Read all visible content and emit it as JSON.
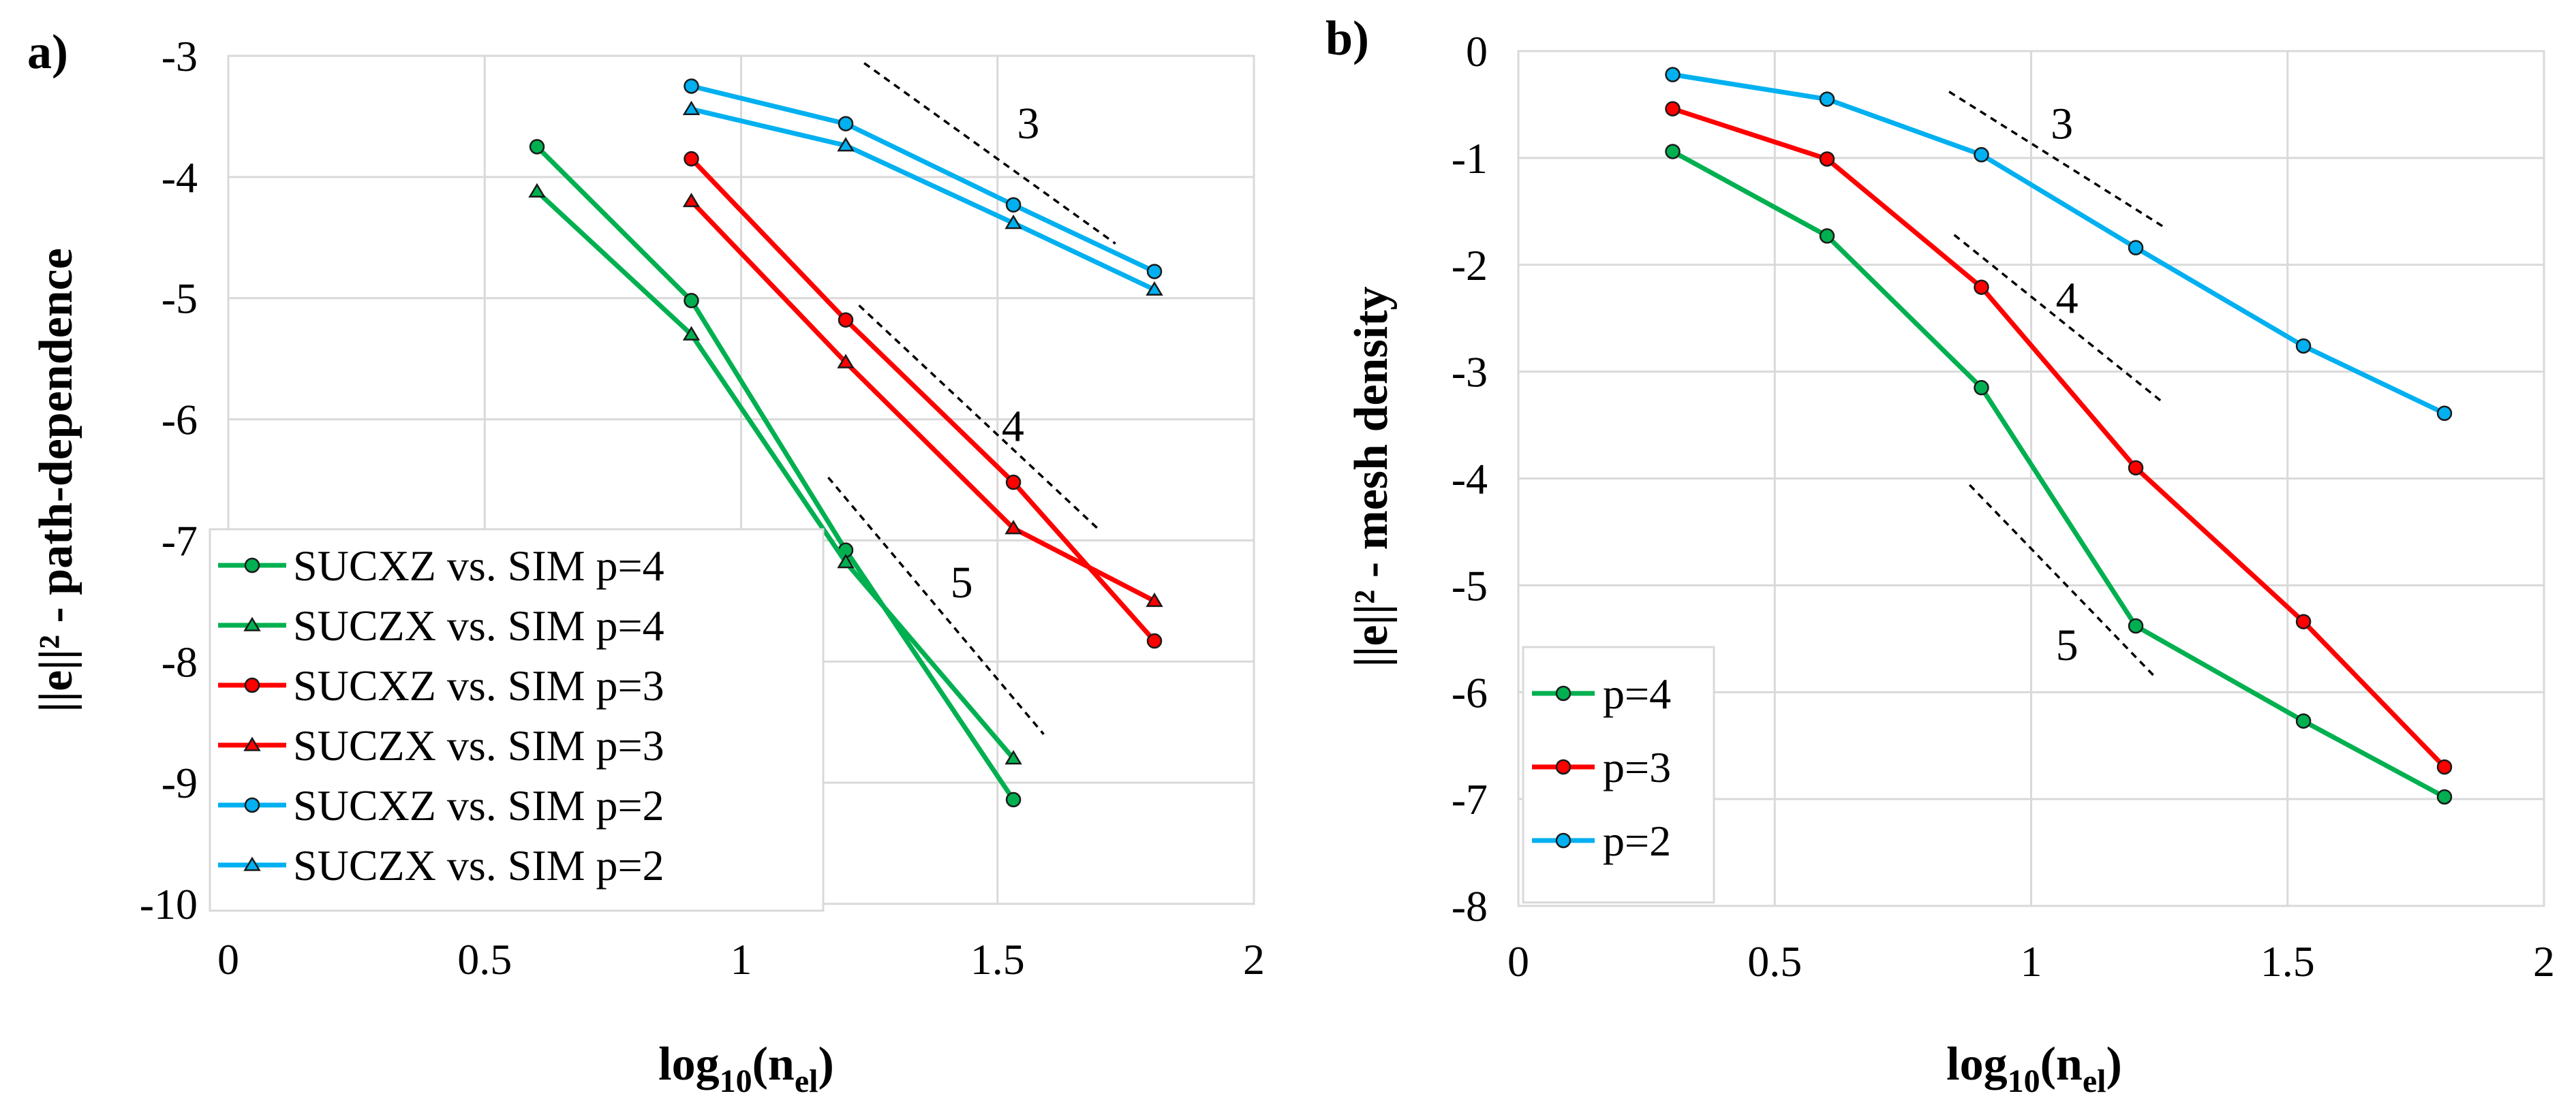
{
  "chart_data": [
    {
      "type": "line",
      "panel_label": "a)",
      "xlabel_main": "log",
      "xlabel_sub": "10",
      "xlabel_paren": "(n",
      "xlabel_sub2": "el",
      "xlabel_close": ")",
      "ylabel": "||e||² - path-dependence",
      "xlim": [
        0,
        2
      ],
      "ylim": [
        -10,
        -3
      ],
      "xticks": [
        "0",
        "0.5",
        "1",
        "1.5",
        "2"
      ],
      "yticks": [
        "-3",
        "-4",
        "-5",
        "-6",
        "-7",
        "-8",
        "-9",
        "-10"
      ],
      "grid": true,
      "legend_position": "bottom-left",
      "series": [
        {
          "name": "SUCXZ vs. SIM p=4",
          "color": "#00B050",
          "marker": "circle",
          "x": [
            0.602,
            0.903,
            1.204,
            1.531
          ],
          "y": [
            -3.75,
            -5.02,
            -7.08,
            -9.14
          ]
        },
        {
          "name": "SUCZX vs. SIM p=4",
          "color": "#00B050",
          "marker": "triangle",
          "x": [
            0.602,
            0.903,
            1.204,
            1.531
          ],
          "y": [
            -4.12,
            -5.3,
            -7.18,
            -8.8
          ]
        },
        {
          "name": "SUCXZ vs. SIM p=3",
          "color": "#FF0000",
          "marker": "circle",
          "x": [
            0.903,
            1.204,
            1.531,
            1.806
          ],
          "y": [
            -3.85,
            -5.18,
            -6.52,
            -7.83
          ]
        },
        {
          "name": "SUCZX vs. SIM p=3",
          "color": "#FF0000",
          "marker": "triangle",
          "x": [
            0.903,
            1.204,
            1.531,
            1.806
          ],
          "y": [
            -4.2,
            -5.53,
            -6.9,
            -7.5
          ]
        },
        {
          "name": "SUCXZ vs. SIM p=2",
          "color": "#00B0F0",
          "marker": "circle",
          "x": [
            0.903,
            1.204,
            1.531,
            1.806
          ],
          "y": [
            -3.25,
            -3.56,
            -4.23,
            -4.78
          ]
        },
        {
          "name": "SUCZX vs. SIM p=2",
          "color": "#00B0F0",
          "marker": "triangle",
          "x": [
            0.903,
            1.204,
            1.531,
            1.806
          ],
          "y": [
            -3.44,
            -3.74,
            -4.38,
            -4.93
          ]
        }
      ],
      "slope_triangles": [
        {
          "label": "3",
          "x": [
            1.24,
            1.73
          ],
          "y": [
            -3.06,
            -4.55
          ],
          "label_x": 1.56,
          "label_y": -3.68
        },
        {
          "label": "4",
          "x": [
            1.23,
            1.7
          ],
          "y": [
            -5.06,
            -6.92
          ],
          "label_x": 1.53,
          "label_y": -6.18
        },
        {
          "label": "5",
          "x": [
            1.17,
            1.59
          ],
          "y": [
            -6.48,
            -8.6
          ],
          "label_x": 1.43,
          "label_y": -7.47
        }
      ]
    },
    {
      "type": "line",
      "panel_label": "b)",
      "xlabel_main": "log",
      "xlabel_sub": "10",
      "xlabel_paren": "(n",
      "xlabel_sub2": "el",
      "xlabel_close": ")",
      "ylabel": "||e||² - mesh density",
      "xlim": [
        0,
        2
      ],
      "ylim": [
        -8,
        0
      ],
      "xticks": [
        "0",
        "0.5",
        "1",
        "1.5",
        "2"
      ],
      "yticks": [
        "0",
        "-1",
        "-2",
        "-3",
        "-4",
        "-5",
        "-6",
        "-7",
        "-8"
      ],
      "grid": true,
      "legend_position": "bottom-left",
      "series": [
        {
          "name": "p=4",
          "color": "#00B050",
          "marker": "circle",
          "x": [
            0.301,
            0.602,
            0.903,
            1.204,
            1.531,
            1.806
          ],
          "y": [
            -0.94,
            -1.73,
            -3.15,
            -5.38,
            -6.27,
            -6.98
          ]
        },
        {
          "name": "p=3",
          "color": "#FF0000",
          "marker": "circle",
          "x": [
            0.301,
            0.602,
            0.903,
            1.204,
            1.531,
            1.806
          ],
          "y": [
            -0.54,
            -1.01,
            -2.21,
            -3.9,
            -5.34,
            -6.7
          ]
        },
        {
          "name": "p=2",
          "color": "#00B0F0",
          "marker": "circle",
          "x": [
            0.301,
            0.602,
            0.903,
            1.204,
            1.531,
            1.806
          ],
          "y": [
            -0.22,
            -0.45,
            -0.97,
            -1.84,
            -2.76,
            -3.39
          ]
        }
      ],
      "slope_triangles": [
        {
          "label": "3",
          "x": [
            0.84,
            1.26
          ],
          "y": [
            -0.38,
            -1.65
          ],
          "label_x": 1.06,
          "label_y": -0.82
        },
        {
          "label": "4",
          "x": [
            0.85,
            1.26
          ],
          "y": [
            -1.72,
            -3.3
          ],
          "label_x": 1.07,
          "label_y": -2.45
        },
        {
          "label": "5",
          "x": [
            0.88,
            1.24
          ],
          "y": [
            -4.06,
            -5.85
          ],
          "label_x": 1.07,
          "label_y": -5.7
        }
      ]
    }
  ]
}
